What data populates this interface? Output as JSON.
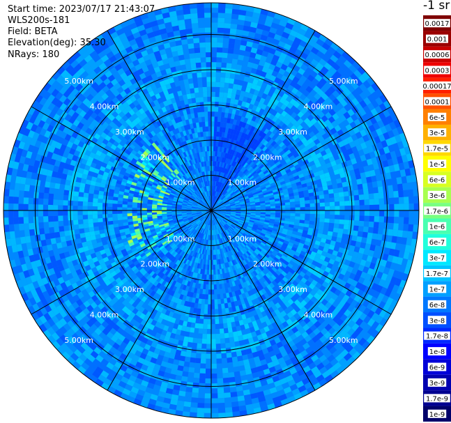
{
  "header": {
    "start_time": "Start time: 2023/07/17 21:43:07",
    "instrument": "WLS200s-181",
    "field": "Field: BETA",
    "elevation": "Elevation(deg): 35.30",
    "nrays": "NRays: 180"
  },
  "colorbar": {
    "unit_label": "-1 sr",
    "ticks": [
      "0.0017",
      "0.001",
      "0.0006",
      "0.0003",
      "0.00017",
      "0.0001",
      "6e-5",
      "3e-5",
      "1.7e-5",
      "1e-5",
      "6e-6",
      "3e-6",
      "1.7e-6",
      "1e-6",
      "6e-7",
      "3e-7",
      "1.7e-7",
      "1e-7",
      "6e-8",
      "3e-8",
      "1.7e-8",
      "1e-8",
      "6e-9",
      "3e-9",
      "1.7e-9",
      "1e-9"
    ],
    "colors": [
      "#7f0000",
      "#9a0000",
      "#c80000",
      "#ee0000",
      "#ff2000",
      "#ff5000",
      "#ff8000",
      "#ffb000",
      "#ffd800",
      "#ffff00",
      "#d8ff20",
      "#a8ff50",
      "#78ff80",
      "#48ffb0",
      "#20ffdc",
      "#00e8ff",
      "#00c4ff",
      "#00a0ff",
      "#0078ff",
      "#0050ff",
      "#0028ff",
      "#0000ff",
      "#0000d8",
      "#0000b0",
      "#000090",
      "#00006a"
    ]
  },
  "chart_data": {
    "type": "heatmap",
    "projection": "polar PPI",
    "field": "BETA",
    "range_rings_km": [
      1,
      2,
      3,
      4,
      5
    ],
    "ring_labels": [
      "1.00km",
      "2.00km",
      "3.00km",
      "4.00km",
      "5.00km"
    ],
    "max_range_km": 5.9,
    "spokes_every_deg": 30,
    "value_scale": "log",
    "value_range": [
      1e-09,
      0.0017
    ],
    "dominant_values": "mostly 1.7e-8 to 1e-7, with higher values up to about 1e-6 near 2 km to the west"
  }
}
